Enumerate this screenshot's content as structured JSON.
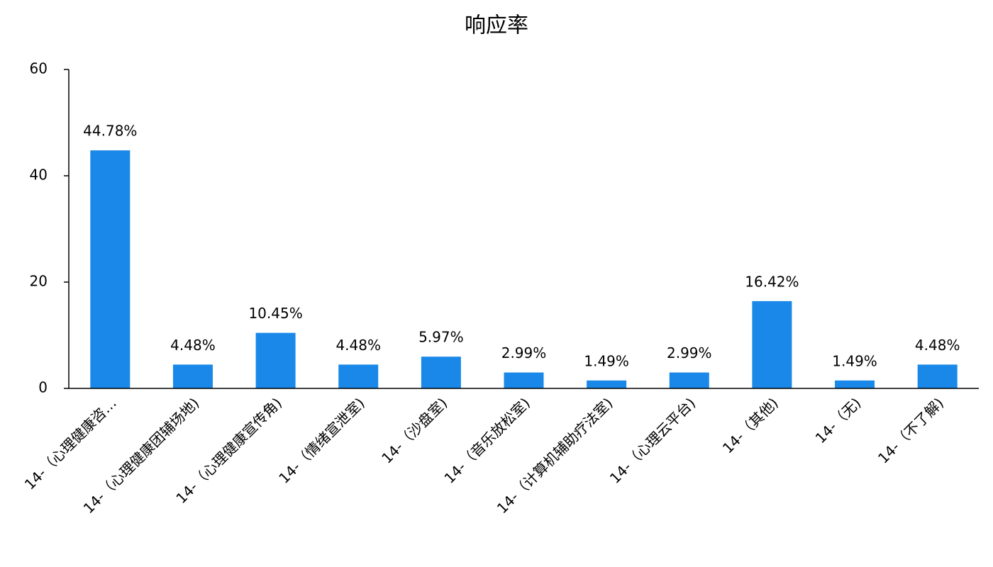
{
  "chart_data": {
    "type": "bar",
    "title": "响应率",
    "categories": [
      "14-（心理健康咨…",
      "14-（心理健康团辅场地)",
      "14-（心理健康宣传角)",
      "14-（情绪宣泄室)",
      "14-（沙盘室)",
      "14-（音乐放松室)",
      "14-（计算机辅助疗法室)",
      "14-（心理云平台)",
      "14-（其他)",
      "14-（无)",
      "14-（不了解)"
    ],
    "values": [
      44.78,
      4.48,
      10.45,
      4.48,
      5.97,
      2.99,
      1.49,
      2.99,
      16.42,
      1.49,
      4.48
    ],
    "value_labels": [
      "44.78%",
      "4.48%",
      "10.45%",
      "4.48%",
      "5.97%",
      "2.99%",
      "1.49%",
      "2.99%",
      "16.42%",
      "1.49%",
      "4.48%"
    ],
    "color": "#1a88e8",
    "ylim": [
      0,
      60
    ],
    "yticks": [
      0,
      20,
      40,
      60
    ],
    "grid": false
  }
}
